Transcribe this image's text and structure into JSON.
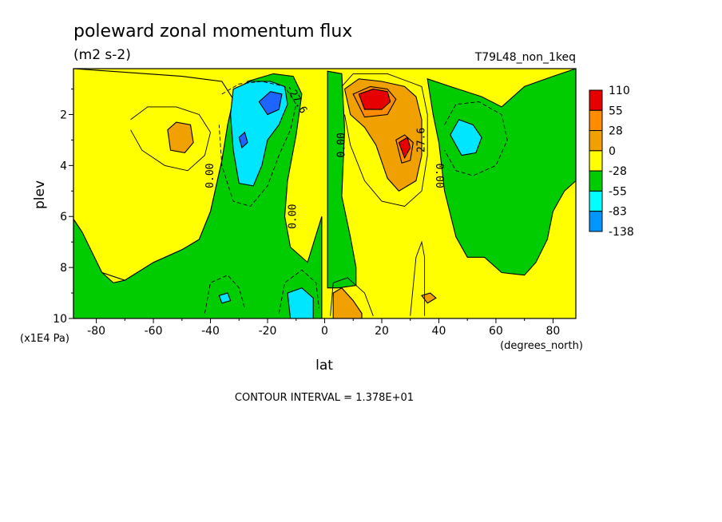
{
  "chart_data": {
    "type": "heatmap",
    "title": "poleward zonal momentum flux",
    "subtitle": "(m2 s-2)",
    "run_label": "T79L48_non_1keq",
    "xlabel": "lat",
    "x_units": "(degrees_north)",
    "ylabel": "plev",
    "y_units": "(x1E4 Pa)",
    "footer": "CONTOUR INTERVAL = 1.378E+01",
    "xlim": [
      -88,
      88
    ],
    "ylim": [
      10,
      0.2
    ],
    "x_ticks": [
      "-80",
      "-60",
      "-40",
      "-20",
      "0",
      "20",
      "40",
      "60",
      "80"
    ],
    "y_ticks": [
      "2",
      "4",
      "6",
      "8",
      "10"
    ],
    "levels": [
      "110",
      "55",
      "28",
      "0",
      "-28",
      "-55",
      "-83",
      "-138"
    ],
    "level_colors": [
      "#e60000",
      "#ff8c00",
      "#f0a000",
      "#ffff00",
      "#00cc00",
      "#00ffff",
      "#0096ff",
      "#0050ff"
    ],
    "colors": {
      "neg_83_plus": "#1e64ff",
      "neg_55": "#00e6ff",
      "neg_28": "#00cc00",
      "pos_0": "#ffff00",
      "pos_28": "#f0a000",
      "pos_55": "#ff8c00",
      "pos_110": "#e60000"
    },
    "contour_labels": [
      "0.00",
      "0.00",
      "0.00",
      "0.00",
      "27.6",
      "-27.6"
    ]
  }
}
